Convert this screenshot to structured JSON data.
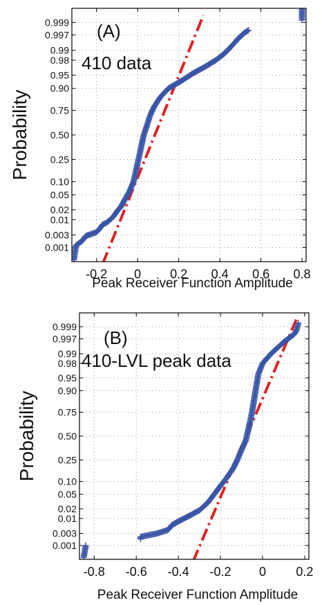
{
  "chart_data": [
    {
      "type": "scatter",
      "panel_label": "(A)",
      "annotation": "410 data",
      "xlabel": "Peak Receiver Function Amplitude",
      "ylabel": "Probability",
      "xlim": [
        -0.32,
        0.82
      ],
      "x_ticks": [
        -0.2,
        0,
        0.2,
        0.4,
        0.6,
        0.8
      ],
      "x_tick_labels": [
        "-0.2",
        "0",
        "0.2",
        "0.4",
        "0.6",
        "0.8"
      ],
      "y_ticks": [
        0.001,
        0.003,
        0.01,
        0.02,
        0.05,
        0.1,
        0.25,
        0.5,
        0.75,
        0.9,
        0.95,
        0.98,
        0.99,
        0.997,
        0.999
      ],
      "y_tick_labels": [
        "0.001",
        "0.003",
        "0.01",
        "0.02",
        "0.05",
        "0.10",
        "0.25",
        "0.50",
        "0.75",
        "0.90",
        "0.95",
        "0.98",
        "0.99",
        "0.997",
        "0.999"
      ],
      "grid": true,
      "scale": "normal probability",
      "fit_line": {
        "color": "#e02222",
        "x": [
          -0.17,
          0.32
        ],
        "p": [
          0.0002,
          0.9995
        ]
      },
      "marker_color": "#3a55a6",
      "points": [
        [
          -0.31,
          0.0003
        ],
        [
          -0.3,
          0.0012
        ],
        [
          -0.27,
          0.0018
        ],
        [
          -0.26,
          0.0023
        ],
        [
          -0.25,
          0.0028
        ],
        [
          -0.2,
          0.0038
        ],
        [
          -0.19,
          0.0045
        ],
        [
          -0.18,
          0.0055
        ],
        [
          -0.17,
          0.007
        ],
        [
          -0.15,
          0.008
        ],
        [
          -0.12,
          0.012
        ],
        [
          -0.1,
          0.018
        ],
        [
          -0.08,
          0.025
        ],
        [
          -0.06,
          0.04
        ],
        [
          -0.04,
          0.06
        ],
        [
          -0.02,
          0.1
        ],
        [
          -0.01,
          0.15
        ],
        [
          0.0,
          0.22
        ],
        [
          0.01,
          0.3
        ],
        [
          0.02,
          0.4
        ],
        [
          0.03,
          0.5
        ],
        [
          0.045,
          0.6
        ],
        [
          0.06,
          0.7
        ],
        [
          0.08,
          0.78
        ],
        [
          0.11,
          0.85
        ],
        [
          0.15,
          0.9
        ],
        [
          0.21,
          0.93
        ],
        [
          0.27,
          0.955
        ],
        [
          0.33,
          0.97
        ],
        [
          0.38,
          0.98
        ],
        [
          0.42,
          0.987
        ],
        [
          0.46,
          0.993
        ],
        [
          0.49,
          0.996
        ],
        [
          0.52,
          0.9975
        ],
        [
          0.54,
          0.998
        ],
        [
          0.8,
          0.9992
        ],
        [
          0.8,
          0.9999
        ]
      ]
    },
    {
      "type": "scatter",
      "panel_label": "(B)",
      "annotation": "410-LVL peak data",
      "xlabel": "Peak Receiver Function Amplitude",
      "ylabel": "Probability",
      "xlim": [
        -0.87,
        0.22
      ],
      "x_ticks": [
        -0.8,
        -0.6,
        -0.4,
        -0.2,
        0,
        0.2
      ],
      "x_tick_labels": [
        "-0.8",
        "-0.6",
        "-0.4",
        "-0.2",
        "0",
        "0.2"
      ],
      "y_ticks": [
        0.001,
        0.003,
        0.01,
        0.02,
        0.05,
        0.1,
        0.25,
        0.5,
        0.75,
        0.9,
        0.95,
        0.98,
        0.99,
        0.997,
        0.999
      ],
      "y_tick_labels": [
        "0.001",
        "0.003",
        "0.01",
        "0.02",
        "0.05",
        "0.10",
        "0.25",
        "0.50",
        "0.75",
        "0.90",
        "0.95",
        "0.98",
        "0.99",
        "0.997",
        "0.999"
      ],
      "grid": true,
      "scale": "normal probability",
      "fit_line": {
        "color": "#e02222",
        "x": [
          -0.33,
          0.16
        ],
        "p": [
          0.0002,
          0.9995
        ]
      },
      "marker_color": "#3a55a6",
      "points": [
        [
          -0.85,
          0.0003
        ],
        [
          -0.84,
          0.001
        ],
        [
          -0.58,
          0.0018
        ],
        [
          -0.58,
          0.0022
        ],
        [
          -0.5,
          0.003
        ],
        [
          -0.45,
          0.004
        ],
        [
          -0.43,
          0.006
        ],
        [
          -0.4,
          0.008
        ],
        [
          -0.35,
          0.012
        ],
        [
          -0.3,
          0.018
        ],
        [
          -0.26,
          0.03
        ],
        [
          -0.23,
          0.05
        ],
        [
          -0.2,
          0.08
        ],
        [
          -0.17,
          0.12
        ],
        [
          -0.14,
          0.18
        ],
        [
          -0.12,
          0.25
        ],
        [
          -0.1,
          0.35
        ],
        [
          -0.08,
          0.45
        ],
        [
          -0.07,
          0.55
        ],
        [
          -0.06,
          0.65
        ],
        [
          -0.05,
          0.75
        ],
        [
          -0.04,
          0.85
        ],
        [
          -0.03,
          0.92
        ],
        [
          -0.02,
          0.96
        ],
        [
          0.0,
          0.98
        ],
        [
          0.04,
          0.99
        ],
        [
          0.1,
          0.996
        ],
        [
          0.15,
          0.998
        ],
        [
          0.16,
          0.9985
        ],
        [
          0.17,
          0.9993
        ]
      ]
    }
  ]
}
